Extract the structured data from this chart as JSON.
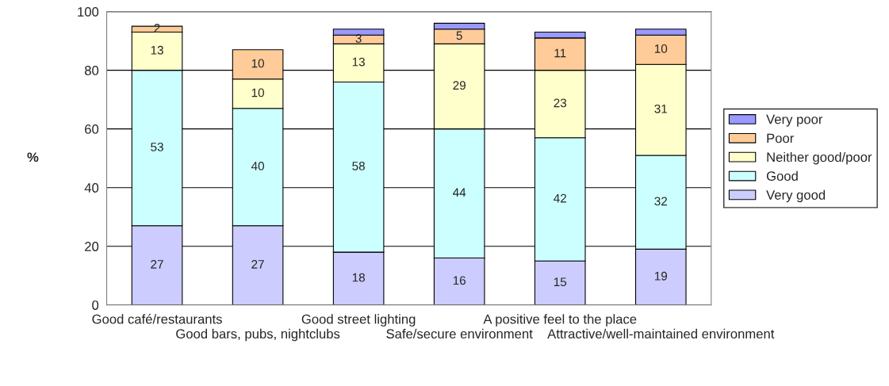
{
  "chart_data": {
    "type": "bar",
    "stacked": true,
    "ylabel": "%",
    "categories": [
      "Good café/restaurants",
      "Good bars, pubs, nightclubs",
      "Good street lighting",
      "Safe/secure environment",
      "A positive feel to the place",
      "Attractive/well-maintained environment"
    ],
    "series": [
      {
        "name": "Very good",
        "color": "#ccccff",
        "values": [
          27,
          27,
          18,
          16,
          15,
          19
        ],
        "value_labels": [
          "27",
          "27",
          "18",
          "16",
          "15",
          "19"
        ]
      },
      {
        "name": "Good",
        "color": "#ccffff",
        "values": [
          53,
          40,
          58,
          44,
          42,
          32
        ],
        "value_labels": [
          "53",
          "40",
          "58",
          "44",
          "42",
          "32"
        ]
      },
      {
        "name": "Neither good/poor",
        "color": "#ffffcc",
        "values": [
          13,
          10,
          13,
          29,
          23,
          31
        ],
        "value_labels": [
          "13",
          "10",
          "13",
          "29",
          "23",
          "31"
        ]
      },
      {
        "name": "Poor",
        "color": "#ffcc99",
        "values": [
          2,
          10,
          3,
          5,
          11,
          10
        ],
        "value_labels": [
          "2",
          "10",
          "3",
          "5",
          "11",
          "10"
        ]
      },
      {
        "name": "Very poor",
        "color": "#9999ff",
        "values": [
          null,
          null,
          2,
          2,
          2,
          2
        ]
      }
    ],
    "ylim": [
      0,
      100
    ],
    "yticks": [
      0,
      20,
      40,
      60,
      80,
      100
    ],
    "grid": "y",
    "legend": "right"
  }
}
